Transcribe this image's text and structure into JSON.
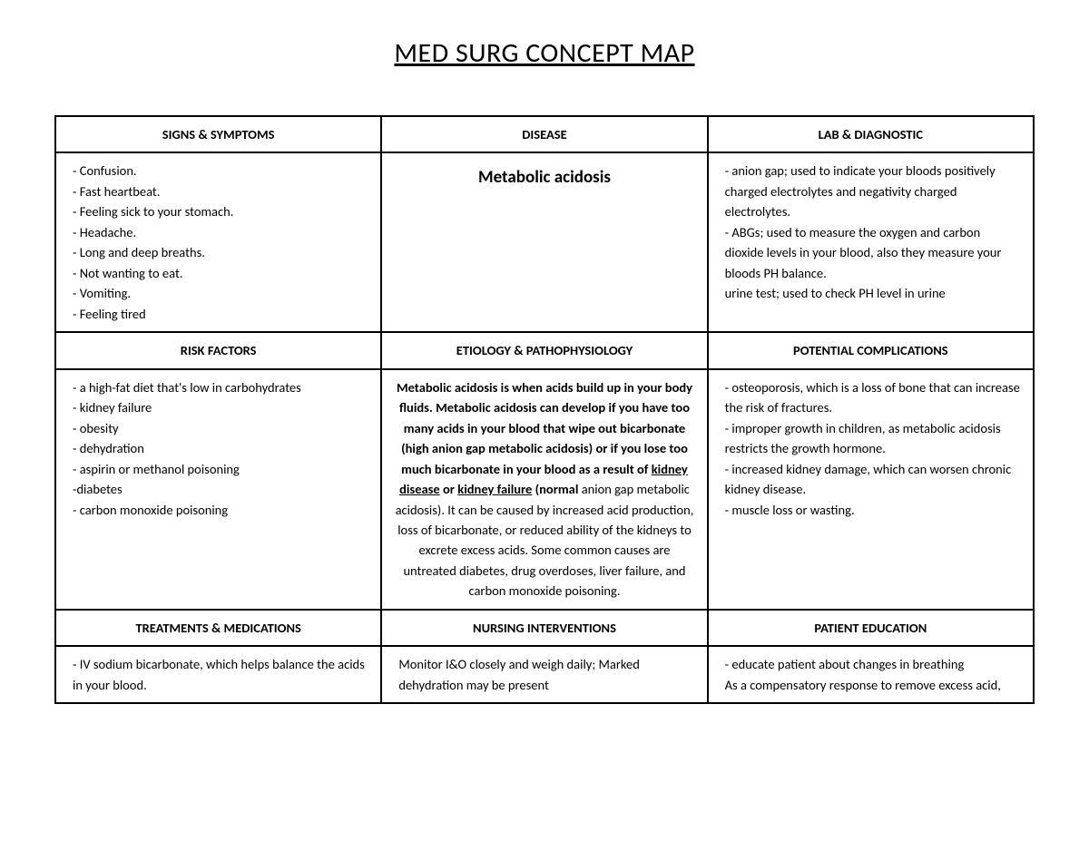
{
  "title": "MED SURG CONCEPT MAP",
  "headers": {
    "signs": "SIGNS & SYMPTOMS",
    "disease": "DISEASE",
    "lab": "LAB & DIAGNOSTIC",
    "risk": "RISK FACTORS",
    "etiology": "ETIOLOGY & PATHOPHYSIOLOGY",
    "complications": "POTENTIAL COMPLICATIONS",
    "treatments": "TREATMENTS & MEDICATIONS",
    "nursing": "NURSING INTERVENTIONS",
    "education": "PATIENT EDUCATION"
  },
  "disease_name": "Metabolic acidosis",
  "signs": [
    "- Confusion.",
    "- Fast heartbeat.",
    "- Feeling sick to your stomach.",
    "- Headache.",
    "- Long and deep breaths.",
    "- Not wanting to eat.",
    "- Vomiting.",
    "- Feeling tired"
  ],
  "lab": [
    "- anion gap; used to indicate your bloods positively charged electrolytes and negativity charged electrolytes.",
    "- ABGs; used to measure the oxygen and carbon dioxide levels in your blood, also they measure your bloods PH balance.",
    "urine test; used to check PH level in urine"
  ],
  "risk": [
    "- a high-fat diet that's low in carbohydrates",
    "- kidney failure",
    "- obesity",
    "- dehydration",
    "- aspirin or methanol poisoning",
    "-diabetes",
    "- carbon monoxide poisoning"
  ],
  "etiology": {
    "b1": "Metabolic acidosis is when acids build up in your body fluids. Metabolic acidosis can develop if you have too many acids in your blood that wipe out bicarbonate (high anion gap metabolic acidosis) or if you lose too much bicarbonate in your blood as a result of ",
    "u1": "kidney disease",
    "b2": " or ",
    "u2": "kidney failure",
    "b3": " (normal ",
    "plain": "anion gap metabolic acidosis). It can be caused by increased acid production, loss of bicarbonate, or reduced ability of the kidneys to excrete excess acids. Some common causes are untreated diabetes, drug overdoses, liver failure, and carbon monoxide poisoning."
  },
  "complications": [
    "- osteoporosis, which is a loss of bone that can increase the risk of fractures.",
    "- improper growth in children, as metabolic acidosis restricts the growth hormone.",
    "- increased kidney damage, which can worsen chronic kidney disease.",
    "- muscle loss or wasting."
  ],
  "treatments": [
    "- IV sodium bicarbonate, which helps balance the acids in your blood."
  ],
  "nursing": [
    "Monitor I&O closely and weigh daily; Marked dehydration may be present"
  ],
  "education": [
    "- educate patient about changes in breathing",
    "As a compensatory response to remove excess acid,"
  ]
}
